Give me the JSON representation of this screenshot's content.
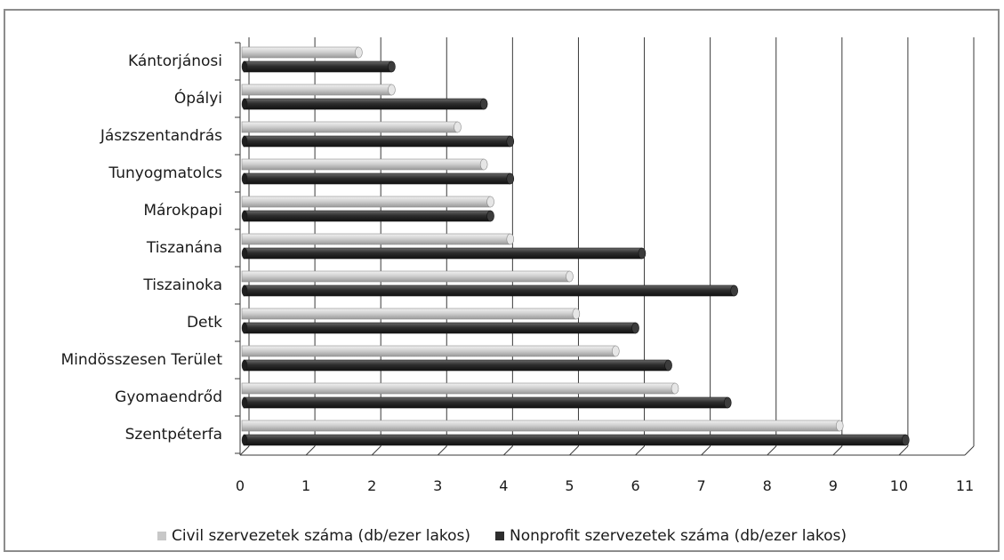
{
  "chart_data": {
    "type": "bar",
    "orientation": "horizontal",
    "style": "3d-cylinder",
    "categories": [
      "Kántorjánosi",
      "Ópályi",
      "Jászszentandrás",
      "Tunyogmatolcs",
      "Márokpapi",
      "Tiszanána",
      "Tiszainoka",
      "Detk",
      "Mindösszesen Terület",
      "Gyomaendrőd",
      "Szentpéterfa"
    ],
    "series": [
      {
        "name": "Civil szervezetek száma (db/ezer lakos)",
        "color": "#c8c8c8",
        "values": [
          1.8,
          2.3,
          3.3,
          3.7,
          3.8,
          4.1,
          5.0,
          5.1,
          5.7,
          6.6,
          9.1
        ]
      },
      {
        "name": "Nonprofit szervezetek száma (db/ezer lakos)",
        "color": "#2e2e2e",
        "values": [
          2.3,
          3.7,
          4.1,
          4.1,
          3.8,
          6.1,
          7.5,
          6.0,
          6.5,
          7.4,
          10.1
        ]
      }
    ],
    "x_ticks": [
      "0",
      "1",
      "2",
      "3",
      "4",
      "5",
      "6",
      "7",
      "8",
      "9",
      "10",
      "11"
    ],
    "xlim": [
      0,
      11
    ],
    "grid": "vertical",
    "legend_position": "bottom"
  }
}
